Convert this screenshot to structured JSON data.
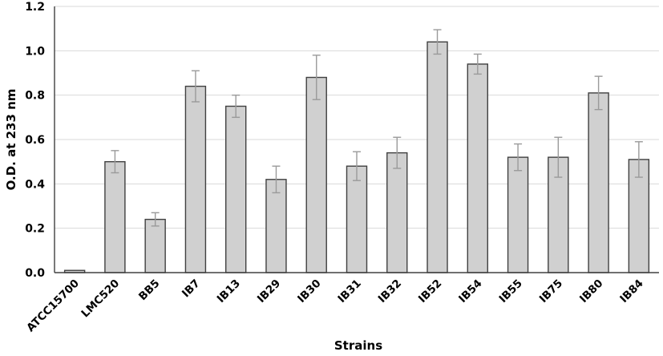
{
  "chart_data": {
    "type": "bar",
    "title": "",
    "xlabel": "Strains",
    "ylabel": "O.D. at 233 nm",
    "ylim": [
      0,
      1.2
    ],
    "yticks": [
      0.0,
      0.2,
      0.4,
      0.6,
      0.8,
      1.0,
      1.2
    ],
    "ytick_labels": [
      "0.0",
      "0.2",
      "0.4",
      "0.6",
      "0.8",
      "1.0",
      "1.2"
    ],
    "grid": true,
    "legend": "none",
    "categories": [
      "ATCC15700",
      "LMC520",
      "BB5",
      "IB7",
      "IB13",
      "IB29",
      "IB30",
      "IB31",
      "IB32",
      "IB52",
      "IB54",
      "IB55",
      "IB75",
      "IB80",
      "IB84"
    ],
    "values": [
      0.01,
      0.5,
      0.24,
      0.84,
      0.75,
      0.42,
      0.88,
      0.48,
      0.54,
      1.04,
      0.94,
      0.52,
      0.52,
      0.81,
      0.51
    ],
    "error": [
      0.0,
      0.05,
      0.03,
      0.07,
      0.05,
      0.06,
      0.1,
      0.065,
      0.07,
      0.055,
      0.045,
      0.06,
      0.09,
      0.075,
      0.08
    ],
    "colors": {
      "bar_fill": "#d0d0d0",
      "bar_stroke": "#404040",
      "error_bar": "#9a9a9a",
      "grid": "#d9d9d9",
      "axis": "#404040",
      "text": "#000000"
    }
  }
}
